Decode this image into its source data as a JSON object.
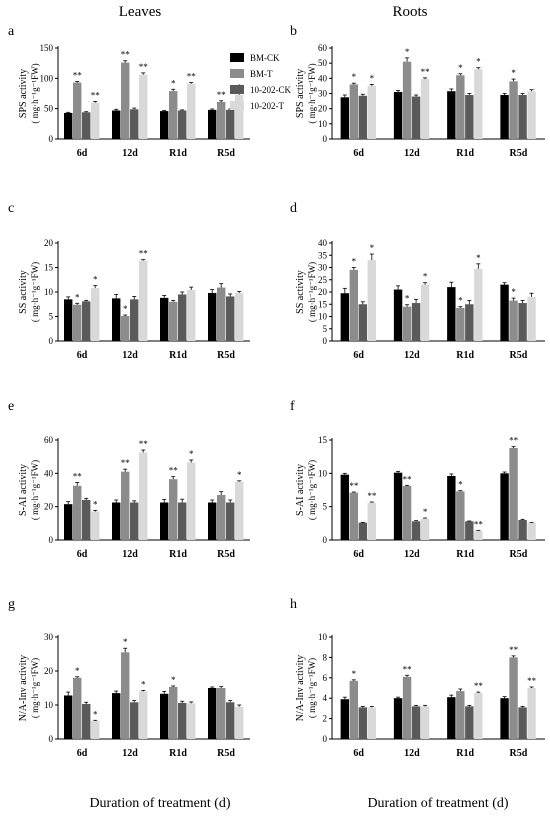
{
  "figure": {
    "column_titles": [
      "Leaves",
      "Roots"
    ],
    "xlabel": "Duration of treatment (d)",
    "categories": [
      "6d",
      "12d",
      "R1d",
      "R5d"
    ],
    "legend": [
      {
        "name": "BM-CK",
        "color": "#000000"
      },
      {
        "name": "BM-T",
        "color": "#8c8c8c"
      },
      {
        "name": "10-202-CK",
        "color": "#5a5a5a"
      },
      {
        "name": "10-202-T",
        "color": "#d9d9d9"
      }
    ]
  },
  "chart_data": [
    {
      "panel": "a",
      "type": "bar",
      "ylabel": "SPS activity",
      "unit": "( mg·h⁻¹g⁻¹FW)",
      "ylim": [
        0,
        150
      ],
      "yticks": [
        0,
        50,
        100,
        150
      ],
      "categories": [
        "6d",
        "12d",
        "R1d",
        "R5d"
      ],
      "series": [
        {
          "name": "BM-CK",
          "values": [
            43,
            47,
            46,
            48
          ],
          "errors": [
            1,
            2,
            1,
            1.5
          ],
          "sig": [
            "",
            "",
            "",
            ""
          ]
        },
        {
          "name": "BM-T",
          "values": [
            93,
            126,
            79,
            61
          ],
          "errors": [
            2,
            3,
            3,
            2
          ],
          "sig": [
            "**",
            "**",
            "*",
            "**"
          ]
        },
        {
          "name": "10-202-CK",
          "values": [
            44,
            49,
            47,
            48
          ],
          "errors": [
            1,
            2,
            1,
            1.5
          ],
          "sig": [
            "",
            "",
            "",
            ""
          ]
        },
        {
          "name": "10-202-T",
          "values": [
            60,
            106,
            91,
            73
          ],
          "errors": [
            2,
            3,
            2,
            2
          ],
          "sig": [
            "**",
            "**",
            "**",
            "*"
          ]
        }
      ]
    },
    {
      "panel": "b",
      "type": "bar",
      "ylabel": "SPS activity",
      "unit": "( mg·h⁻¹g⁻¹FW)",
      "ylim": [
        0,
        60
      ],
      "yticks": [
        0,
        10,
        20,
        30,
        40,
        50,
        60
      ],
      "categories": [
        "6d",
        "12d",
        "R1d",
        "R5d"
      ],
      "series": [
        {
          "name": "BM-CK",
          "values": [
            27.5,
            31,
            31.5,
            29
          ],
          "errors": [
            1.5,
            1,
            1.5,
            1
          ],
          "sig": [
            "",
            "",
            "",
            ""
          ]
        },
        {
          "name": "BM-T",
          "values": [
            36,
            51,
            42,
            38
          ],
          "errors": [
            0.8,
            2.5,
            1,
            1.5
          ],
          "sig": [
            "*",
            "*",
            "*",
            "*"
          ]
        },
        {
          "name": "10-202-CK",
          "values": [
            28.5,
            28,
            29,
            29
          ],
          "errors": [
            1,
            1,
            1,
            1
          ],
          "sig": [
            "",
            "",
            "",
            ""
          ]
        },
        {
          "name": "10-202-T",
          "values": [
            35,
            39.5,
            46,
            31.5
          ],
          "errors": [
            1,
            0.8,
            1,
            1
          ],
          "sig": [
            "*",
            "**",
            "*",
            ""
          ]
        }
      ]
    },
    {
      "panel": "c",
      "type": "bar",
      "ylabel": "SS activity",
      "unit": "( mg·h⁻¹g⁻¹FW)",
      "ylim": [
        0,
        20
      ],
      "yticks": [
        0,
        5,
        10,
        15,
        20
      ],
      "categories": [
        "6d",
        "12d",
        "R1d",
        "R5d"
      ],
      "series": [
        {
          "name": "BM-CK",
          "values": [
            8.5,
            8.7,
            8.8,
            9.8
          ],
          "errors": [
            0.5,
            0.8,
            0.5,
            0.7
          ],
          "sig": [
            "",
            "",
            "",
            ""
          ]
        },
        {
          "name": "BM-T",
          "values": [
            7.4,
            5.1,
            8.0,
            10.9
          ],
          "errors": [
            0.3,
            0.2,
            0.3,
            0.8
          ],
          "sig": [
            "*",
            "*",
            "",
            ""
          ]
        },
        {
          "name": "10-202-CK",
          "values": [
            8.1,
            8.5,
            9.5,
            9.1
          ],
          "errors": [
            0.2,
            0.6,
            0.5,
            0.5
          ],
          "sig": [
            "",
            "",
            "",
            ""
          ]
        },
        {
          "name": "10-202-T",
          "values": [
            10.8,
            16.4,
            10.4,
            9.8
          ],
          "errors": [
            0.5,
            0.2,
            0.6,
            0.3
          ],
          "sig": [
            "*",
            "**",
            "",
            ""
          ]
        }
      ]
    },
    {
      "panel": "d",
      "type": "bar",
      "ylabel": "SS activity",
      "unit": "( mg·h⁻¹g⁻¹FW)",
      "ylim": [
        0,
        40
      ],
      "yticks": [
        0,
        5,
        10,
        15,
        20,
        25,
        30,
        35,
        40
      ],
      "categories": [
        "6d",
        "12d",
        "R1d",
        "R5d"
      ],
      "series": [
        {
          "name": "BM-CK",
          "values": [
            19.5,
            21,
            22,
            23
          ],
          "errors": [
            2,
            1.5,
            2,
            0.8
          ],
          "sig": [
            "",
            "",
            "",
            ""
          ]
        },
        {
          "name": "BM-T",
          "values": [
            29,
            14,
            13.5,
            16.5
          ],
          "errors": [
            1,
            0.8,
            0.5,
            1
          ],
          "sig": [
            "*",
            "*",
            "*",
            "*"
          ]
        },
        {
          "name": "10-202-CK",
          "values": [
            15,
            15.5,
            15,
            15.5
          ],
          "errors": [
            1,
            1.5,
            1.5,
            1
          ],
          "sig": [
            "",
            "",
            "",
            ""
          ]
        },
        {
          "name": "10-202-T",
          "values": [
            33,
            23,
            29.5,
            18
          ],
          "errors": [
            2.5,
            0.8,
            2,
            1.5
          ],
          "sig": [
            "*",
            "*",
            "*",
            ""
          ]
        }
      ]
    },
    {
      "panel": "e",
      "type": "bar",
      "ylabel": "S-AI activity",
      "unit": "( mg·h⁻¹g⁻¹FW)",
      "ylim": [
        0,
        60
      ],
      "yticks": [
        0,
        20,
        40,
        60
      ],
      "categories": [
        "6d",
        "12d",
        "R1d",
        "R5d"
      ],
      "series": [
        {
          "name": "BM-CK",
          "values": [
            21.5,
            22.5,
            22.5,
            22.5
          ],
          "errors": [
            1.5,
            1.5,
            1.8,
            1.5
          ],
          "sig": [
            "",
            "",
            "",
            ""
          ]
        },
        {
          "name": "BM-T",
          "values": [
            32.5,
            41,
            36.5,
            27
          ],
          "errors": [
            2,
            1.5,
            1.5,
            2
          ],
          "sig": [
            "**",
            "**",
            "**",
            ""
          ]
        },
        {
          "name": "10-202-CK",
          "values": [
            24,
            22.5,
            22.5,
            22.5
          ],
          "errors": [
            1,
            1,
            2,
            1.5
          ],
          "sig": [
            "",
            "",
            "",
            ""
          ]
        },
        {
          "name": "10-202-T",
          "values": [
            17,
            52.5,
            46.5,
            35
          ],
          "errors": [
            0.8,
            1.5,
            1.5,
            0.5
          ],
          "sig": [
            "*",
            "**",
            "*",
            "*"
          ]
        }
      ]
    },
    {
      "panel": "f",
      "type": "bar",
      "ylabel": "S-AI activity",
      "unit": "( mg·h⁻¹g⁻¹FW)",
      "ylim": [
        0,
        15
      ],
      "yticks": [
        0,
        5,
        10,
        15
      ],
      "categories": [
        "6d",
        "12d",
        "R1d",
        "R5d"
      ],
      "series": [
        {
          "name": "BM-CK",
          "values": [
            9.8,
            10.1,
            9.6,
            10.0
          ],
          "errors": [
            0.2,
            0.2,
            0.3,
            0.2
          ],
          "sig": [
            "",
            "",
            "",
            ""
          ]
        },
        {
          "name": "BM-T",
          "values": [
            7.1,
            8.1,
            7.3,
            13.8
          ],
          "errors": [
            0.1,
            0.1,
            0.1,
            0.2
          ],
          "sig": [
            "**",
            "**",
            "*",
            "**"
          ]
        },
        {
          "name": "10-202-CK",
          "values": [
            2.6,
            2.8,
            2.8,
            3.0
          ],
          "errors": [
            0.05,
            0.1,
            0.05,
            0.1
          ],
          "sig": [
            "",
            "",
            "",
            ""
          ]
        },
        {
          "name": "10-202-T",
          "values": [
            5.6,
            3.2,
            1.4,
            2.6
          ],
          "errors": [
            0.1,
            0.1,
            0.05,
            0.05
          ],
          "sig": [
            "**",
            "*",
            "**",
            ""
          ]
        }
      ]
    },
    {
      "panel": "g",
      "type": "bar",
      "ylabel": "N/A-Inv activity",
      "unit": "( mg·h⁻¹g⁻¹FW)",
      "ylim": [
        0,
        30
      ],
      "yticks": [
        0,
        10,
        20,
        30
      ],
      "categories": [
        "6d",
        "12d",
        "R1d",
        "R5d"
      ],
      "series": [
        {
          "name": "BM-CK",
          "values": [
            12.8,
            13.5,
            13.3,
            15.0
          ],
          "errors": [
            1,
            0.6,
            0.7,
            0.3
          ],
          "sig": [
            "",
            "",
            "",
            ""
          ]
        },
        {
          "name": "BM-T",
          "values": [
            18.0,
            25.5,
            15.3,
            15.0
          ],
          "errors": [
            0.3,
            1.2,
            0.3,
            0.4
          ],
          "sig": [
            "*",
            "*",
            "*",
            ""
          ]
        },
        {
          "name": "10-202-CK",
          "values": [
            10.3,
            10.8,
            10.6,
            10.8
          ],
          "errors": [
            0.5,
            0.5,
            0.5,
            0.5
          ],
          "sig": [
            "",
            "",
            "",
            ""
          ]
        },
        {
          "name": "10-202-T",
          "values": [
            5.3,
            14.0,
            10.5,
            9.5
          ],
          "errors": [
            0.2,
            0.3,
            0.4,
            0.5
          ],
          "sig": [
            "*",
            "*",
            "",
            ""
          ]
        }
      ]
    },
    {
      "panel": "h",
      "type": "bar",
      "ylabel": "N/A-Inv activity",
      "unit": "( mg·h⁻¹g⁻¹FW)",
      "ylim": [
        0,
        10
      ],
      "yticks": [
        0,
        2,
        4,
        6,
        8,
        10
      ],
      "categories": [
        "6d",
        "12d",
        "R1d",
        "R5d"
      ],
      "series": [
        {
          "name": "BM-CK",
          "values": [
            3.9,
            4.0,
            4.1,
            4.0
          ],
          "errors": [
            0.2,
            0.1,
            0.2,
            0.15
          ],
          "sig": [
            "",
            "",
            "",
            ""
          ]
        },
        {
          "name": "BM-T",
          "values": [
            5.7,
            6.1,
            4.7,
            8.0
          ],
          "errors": [
            0.1,
            0.15,
            0.2,
            0.15
          ],
          "sig": [
            "*",
            "**",
            "",
            "**"
          ]
        },
        {
          "name": "10-202-CK",
          "values": [
            3.1,
            3.2,
            3.2,
            3.1
          ],
          "errors": [
            0.1,
            0.1,
            0.1,
            0.1
          ],
          "sig": [
            "",
            "",
            "",
            ""
          ]
        },
        {
          "name": "10-202-T",
          "values": [
            3.1,
            3.2,
            4.5,
            5.0
          ],
          "errors": [
            0.1,
            0.1,
            0.1,
            0.1
          ],
          "sig": [
            "",
            "",
            "**",
            "**"
          ]
        }
      ]
    }
  ]
}
